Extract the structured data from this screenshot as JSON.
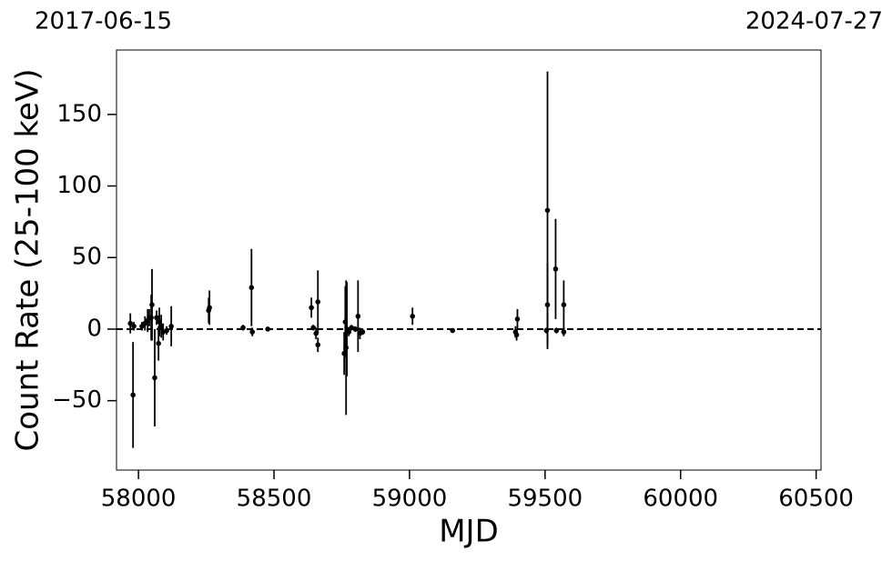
{
  "chart_data": {
    "type": "errorbar",
    "top_left_label": "2017-06-15",
    "top_right_label": "2024-07-27",
    "xlabel": "MJD",
    "ylabel": "Count Rate (25-100 keV)",
    "xlim": [
      57919,
      60518
    ],
    "ylim": [
      -98.5,
      195
    ],
    "xticks": [
      58000,
      58500,
      59000,
      59500,
      60000,
      60500
    ],
    "yticks": [
      {
        "value": -50,
        "label": "−50"
      },
      0,
      50,
      100,
      150
    ],
    "grid": false,
    "hline": 0,
    "series": [
      {
        "color": "#000000",
        "x": [
          57970,
          57980,
          57983,
          58013,
          58024,
          58034,
          58040,
          58047,
          58050,
          58060,
          58067,
          58074,
          58077,
          58084,
          58091,
          58104,
          58121,
          58259,
          58262,
          58386,
          58417,
          58420,
          58477,
          58638,
          58645,
          58655,
          58662,
          58662,
          58759,
          58763,
          58766,
          58769,
          58776,
          58786,
          58800,
          58810,
          58817,
          58827,
          59011,
          59159,
          59391,
          59395,
          59398,
          59505,
          59509,
          59509,
          59539,
          59542,
          59569,
          59569
        ],
        "values": [
          4,
          -46,
          2,
          2,
          4,
          6,
          8,
          8,
          17,
          -34,
          8,
          -10,
          5,
          2,
          -2,
          -1,
          2,
          13,
          15,
          1,
          29,
          -2,
          0,
          15,
          1,
          -3,
          19,
          -11,
          -17,
          5,
          -13,
          0,
          -2,
          1,
          0,
          9,
          -3,
          -2,
          9,
          -1,
          -2,
          -4,
          7,
          -1,
          17,
          83,
          42,
          -1,
          17,
          -2
        ],
        "errors": [
          7,
          37,
          3,
          3,
          5,
          8,
          6,
          16,
          25,
          34,
          5,
          12,
          10,
          8,
          6,
          3,
          14,
          9,
          12,
          2,
          27,
          3,
          1,
          7,
          2,
          4,
          22,
          5,
          15,
          25,
          47,
          33,
          3,
          2,
          2,
          25,
          4,
          2,
          6,
          1,
          4,
          4,
          7,
          2,
          29,
          97,
          35,
          2,
          17,
          3
        ]
      }
    ]
  }
}
